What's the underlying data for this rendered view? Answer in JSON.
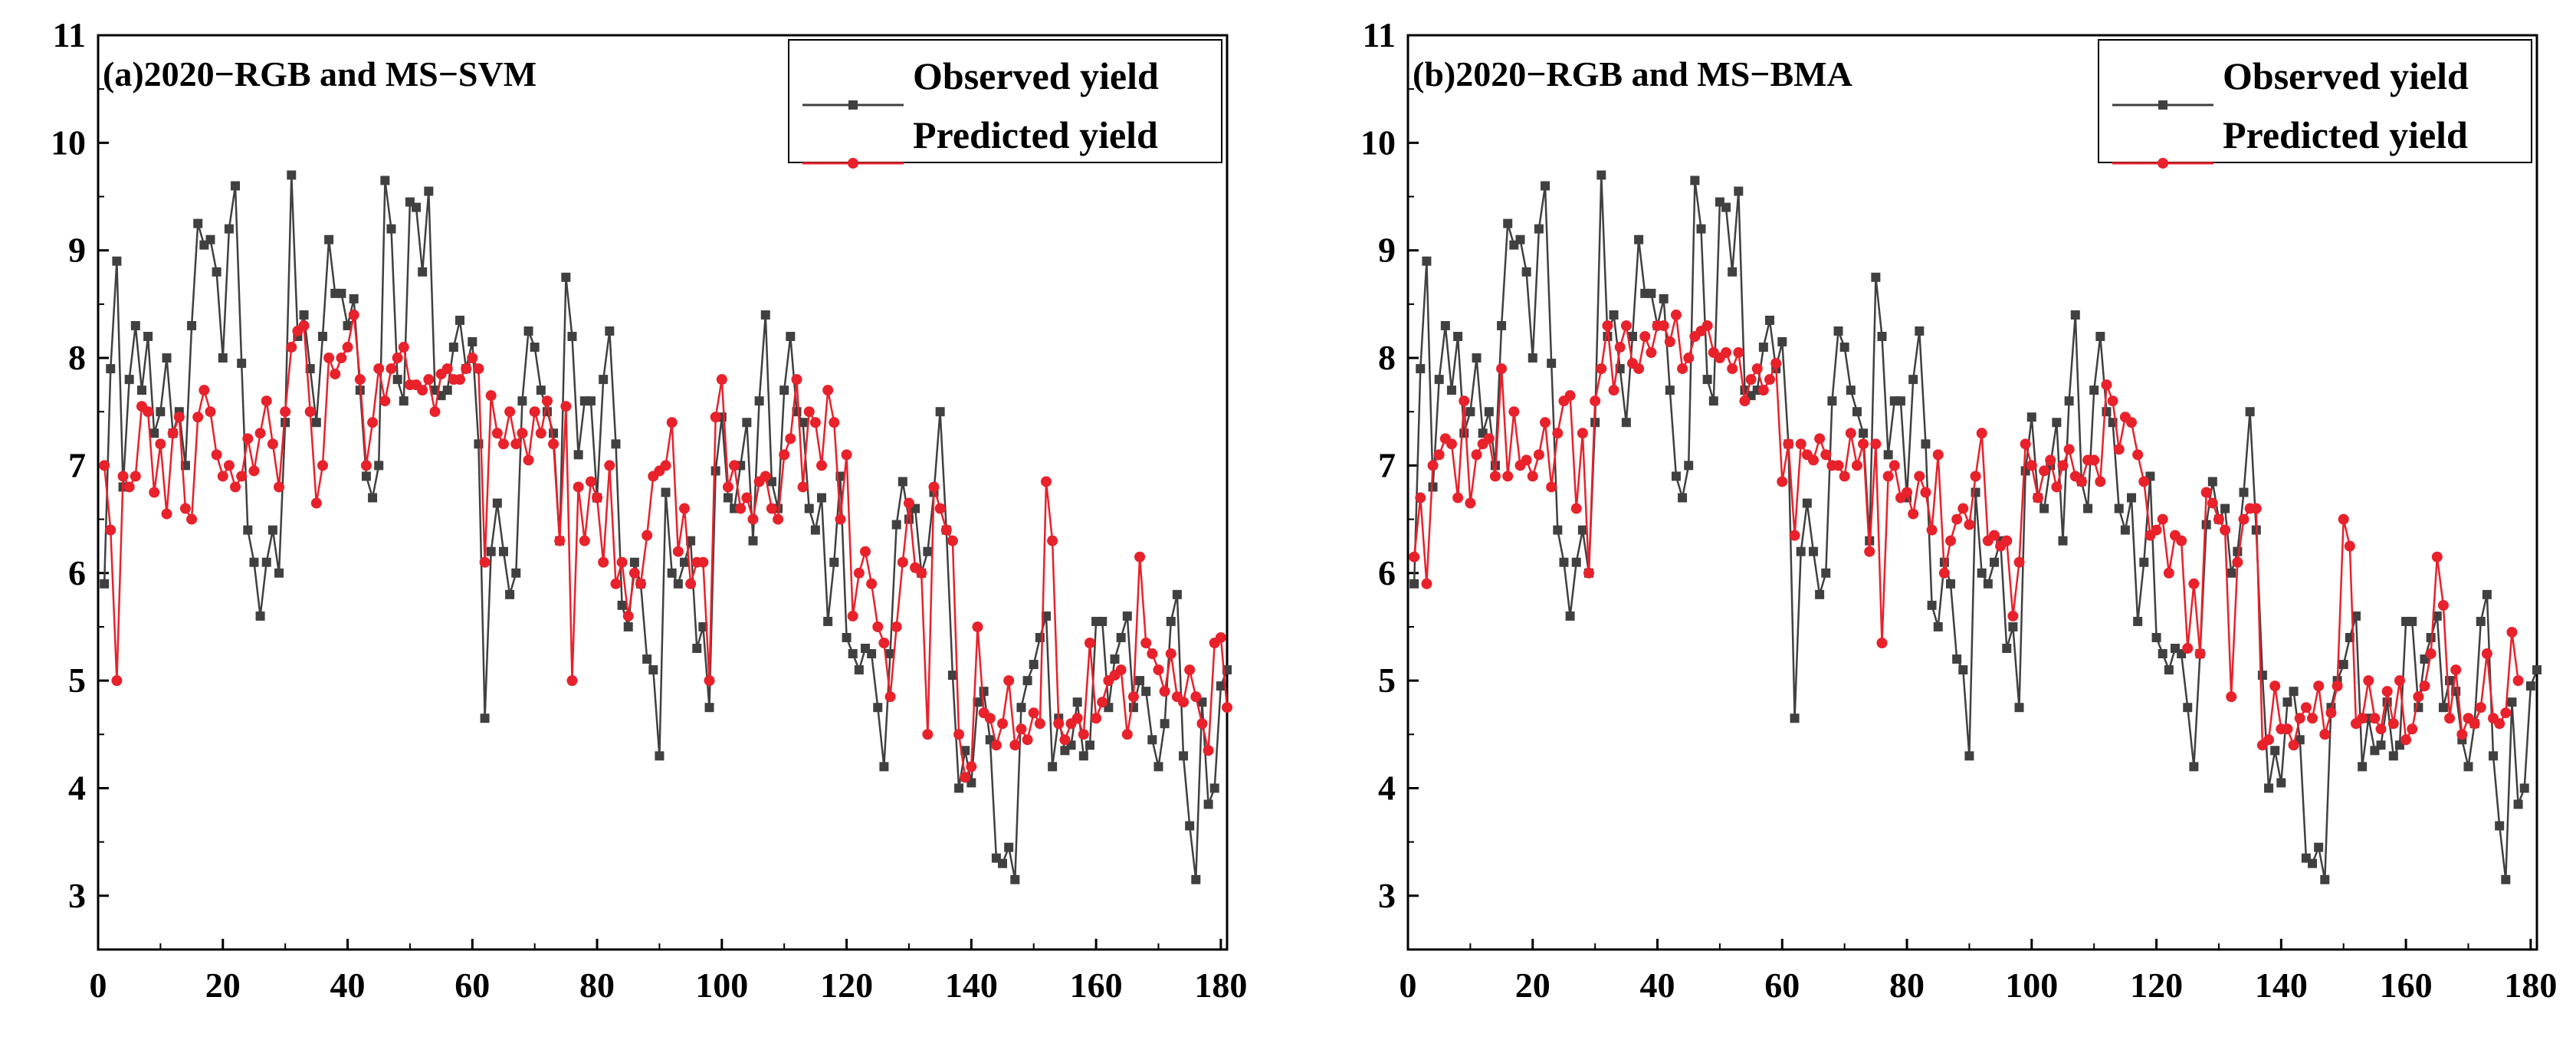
{
  "figure": {
    "legend_position": "top-right",
    "colors": {
      "observed": "#404040",
      "predicted": "#e8212b",
      "axis": "#000000"
    }
  },
  "chart_data": [
    {
      "type": "line",
      "title": "(a)2020−RGB and MS−SVM",
      "xlabel": "",
      "ylabel": "",
      "xlim": [
        0,
        181
      ],
      "ylim": [
        2.5,
        11
      ],
      "x_ticks": [
        0,
        20,
        40,
        60,
        80,
        100,
        120,
        140,
        160,
        180
      ],
      "y_ticks": [
        3,
        4,
        5,
        6,
        7,
        8,
        9,
        10,
        11
      ],
      "grid": false,
      "legend": [
        "Observed yield",
        "Predicted yield"
      ],
      "x_start": 1,
      "series": [
        {
          "name": "Observed yield",
          "marker": "square",
          "color": "#404040",
          "values": [
            5.9,
            7.9,
            8.9,
            6.8,
            7.8,
            8.3,
            7.7,
            8.2,
            7.3,
            7.5,
            8.0,
            7.3,
            7.5,
            7.0,
            8.3,
            9.25,
            9.05,
            9.1,
            8.8,
            8.0,
            9.2,
            9.6,
            7.95,
            6.4,
            6.1,
            5.6,
            6.1,
            6.4,
            6.0,
            7.4,
            9.7,
            8.2,
            8.4,
            7.9,
            7.4,
            8.2,
            9.1,
            8.6,
            8.6,
            8.3,
            8.55,
            7.7,
            6.9,
            6.7,
            7.0,
            9.65,
            9.2,
            7.8,
            7.6,
            9.45,
            9.4,
            8.8,
            9.55,
            7.7,
            7.65,
            7.7,
            8.1,
            8.35,
            7.9,
            8.15,
            7.2,
            4.65,
            6.2,
            6.65,
            6.2,
            5.8,
            6.0,
            7.6,
            8.25,
            8.1,
            7.7,
            7.5,
            7.3,
            6.3,
            8.75,
            8.2,
            7.1,
            7.6,
            7.6,
            6.7,
            7.8,
            8.25,
            7.2,
            5.7,
            5.5,
            6.1,
            5.9,
            5.2,
            5.1,
            4.3,
            6.75,
            6.0,
            5.9,
            6.1,
            6.3,
            5.3,
            5.5,
            4.75,
            6.95,
            7.45,
            6.7,
            6.6,
            7.0,
            7.4,
            6.3,
            7.6,
            8.4,
            6.85,
            6.6,
            7.7,
            8.2,
            7.5,
            7.4,
            6.6,
            6.4,
            6.7,
            5.55,
            6.1,
            6.9,
            5.4,
            5.25,
            5.1,
            5.3,
            5.25,
            4.75,
            4.2,
            5.25,
            6.45,
            6.85,
            6.5,
            6.6,
            6.0,
            6.2,
            6.75,
            7.5,
            6.4,
            5.05,
            4.0,
            4.35,
            4.05,
            4.8,
            4.9,
            4.45,
            3.35,
            3.3,
            3.45,
            3.15,
            4.75,
            5.0,
            5.15,
            5.4,
            5.6,
            4.2,
            4.65,
            4.35,
            4.4,
            4.8,
            4.3,
            4.4,
            5.55,
            5.55,
            4.75,
            5.2,
            5.4,
            5.6,
            4.75,
            5.0,
            4.9,
            4.45,
            4.2,
            4.6,
            5.55,
            5.8,
            4.3,
            3.65,
            3.15,
            4.8,
            3.85,
            4.0,
            4.95,
            5.1
          ]
        },
        {
          "name": "Predicted yield",
          "marker": "circle",
          "color": "#e8212b",
          "values": [
            7.0,
            6.4,
            5.0,
            6.9,
            6.8,
            6.9,
            7.55,
            7.5,
            6.75,
            7.2,
            6.55,
            7.3,
            7.45,
            6.6,
            6.5,
            7.45,
            7.7,
            7.5,
            7.1,
            6.9,
            7.0,
            6.8,
            6.9,
            7.25,
            6.95,
            7.3,
            7.6,
            7.2,
            6.8,
            7.5,
            8.1,
            8.25,
            8.3,
            7.5,
            6.65,
            7.0,
            8.0,
            7.85,
            8.0,
            8.1,
            8.4,
            7.8,
            7.0,
            7.4,
            7.9,
            7.6,
            7.9,
            8.0,
            8.1,
            7.75,
            7.75,
            7.7,
            7.8,
            7.5,
            7.85,
            7.9,
            7.8,
            7.8,
            7.9,
            8.0,
            7.9,
            6.1,
            7.65,
            7.3,
            7.2,
            7.5,
            7.2,
            7.3,
            7.05,
            7.5,
            7.3,
            7.6,
            7.2,
            6.3,
            7.55,
            5.0,
            6.8,
            6.3,
            6.85,
            6.7,
            6.1,
            7.0,
            5.9,
            6.1,
            5.6,
            6.0,
            5.9,
            6.35,
            6.9,
            6.95,
            7.0,
            7.4,
            6.2,
            6.6,
            5.9,
            6.1,
            6.1,
            5.0,
            7.45,
            7.8,
            6.8,
            7.0,
            6.6,
            6.7,
            6.5,
            6.85,
            6.9,
            6.6,
            6.5,
            7.1,
            7.25,
            7.8,
            6.8,
            7.5,
            7.4,
            7.0,
            7.7,
            7.4,
            6.5,
            7.1,
            5.6,
            6.0,
            6.2,
            5.9,
            5.5,
            5.35,
            4.85,
            5.5,
            6.1,
            6.65,
            6.05,
            6.0,
            4.5,
            6.8,
            6.6,
            6.4,
            6.3,
            4.5,
            4.1,
            4.2,
            5.5,
            4.7,
            4.65,
            4.4,
            4.6,
            5.0,
            4.4,
            4.55,
            4.45,
            4.7,
            4.6,
            6.85,
            6.3,
            4.6,
            4.45,
            4.6,
            4.65,
            4.5,
            5.35,
            4.65,
            4.8,
            5.0,
            5.05,
            5.1,
            4.5,
            4.85,
            6.15,
            5.35,
            5.25,
            5.1,
            4.9,
            5.25,
            4.85,
            4.8,
            5.1,
            4.85,
            4.6,
            4.35,
            5.35,
            5.4,
            4.75
          ]
        }
      ]
    },
    {
      "type": "line",
      "title": "(b)2020−RGB and MS−BMA",
      "xlabel": "",
      "ylabel": "",
      "xlim": [
        0,
        181
      ],
      "ylim": [
        2.5,
        11
      ],
      "x_ticks": [
        0,
        20,
        40,
        60,
        80,
        100,
        120,
        140,
        160,
        180
      ],
      "y_ticks": [
        3,
        4,
        5,
        6,
        7,
        8,
        9,
        10,
        11
      ],
      "grid": false,
      "legend": [
        "Observed yield",
        "Predicted yield"
      ],
      "x_start": 1,
      "series": [
        {
          "name": "Observed yield",
          "marker": "square",
          "color": "#404040",
          "values": [
            5.9,
            7.9,
            8.9,
            6.8,
            7.8,
            8.3,
            7.7,
            8.2,
            7.3,
            7.5,
            8.0,
            7.3,
            7.5,
            7.0,
            8.3,
            9.25,
            9.05,
            9.1,
            8.8,
            8.0,
            9.2,
            9.6,
            7.95,
            6.4,
            6.1,
            5.6,
            6.1,
            6.4,
            6.0,
            7.4,
            9.7,
            8.2,
            8.4,
            7.9,
            7.4,
            8.2,
            9.1,
            8.6,
            8.6,
            8.3,
            8.55,
            7.7,
            6.9,
            6.7,
            7.0,
            9.65,
            9.2,
            7.8,
            7.6,
            9.45,
            9.4,
            8.8,
            9.55,
            7.7,
            7.65,
            7.7,
            8.1,
            8.35,
            7.9,
            8.15,
            7.2,
            4.65,
            6.2,
            6.65,
            6.2,
            5.8,
            6.0,
            7.6,
            8.25,
            8.1,
            7.7,
            7.5,
            7.3,
            6.3,
            8.75,
            8.2,
            7.1,
            7.6,
            7.6,
            6.7,
            7.8,
            8.25,
            7.2,
            5.7,
            5.5,
            6.1,
            5.9,
            5.2,
            5.1,
            4.3,
            6.75,
            6.0,
            5.9,
            6.1,
            6.3,
            5.3,
            5.5,
            4.75,
            6.95,
            7.45,
            6.7,
            6.6,
            7.0,
            7.4,
            6.3,
            7.6,
            8.4,
            6.85,
            6.6,
            7.7,
            8.2,
            7.5,
            7.4,
            6.6,
            6.4,
            6.7,
            5.55,
            6.1,
            6.9,
            5.4,
            5.25,
            5.1,
            5.3,
            5.25,
            4.75,
            4.2,
            5.25,
            6.45,
            6.85,
            6.5,
            6.6,
            6.0,
            6.2,
            6.75,
            7.5,
            6.4,
            5.05,
            4.0,
            4.35,
            4.05,
            4.8,
            4.9,
            4.45,
            3.35,
            3.3,
            3.45,
            3.15,
            4.75,
            5.0,
            5.15,
            5.4,
            5.6,
            4.2,
            4.65,
            4.35,
            4.4,
            4.8,
            4.3,
            4.4,
            5.55,
            5.55,
            4.75,
            5.2,
            5.4,
            5.6,
            4.75,
            5.0,
            4.9,
            4.45,
            4.2,
            4.6,
            5.55,
            5.8,
            4.3,
            3.65,
            3.15,
            4.8,
            3.85,
            4.0,
            4.95,
            5.1
          ]
        },
        {
          "name": "Predicted yield",
          "marker": "circle",
          "color": "#e8212b",
          "values": [
            6.15,
            6.7,
            5.9,
            7.0,
            7.1,
            7.25,
            7.2,
            6.7,
            7.6,
            6.65,
            7.1,
            7.2,
            7.25,
            6.9,
            7.9,
            6.9,
            7.5,
            7.0,
            7.05,
            6.9,
            7.1,
            7.4,
            6.8,
            7.3,
            7.6,
            7.65,
            6.6,
            7.3,
            6.0,
            7.6,
            7.9,
            8.3,
            7.7,
            8.1,
            8.3,
            7.95,
            7.9,
            8.2,
            8.05,
            8.3,
            8.3,
            8.15,
            8.4,
            7.9,
            8.0,
            8.2,
            8.25,
            8.3,
            8.05,
            8.0,
            8.05,
            7.9,
            8.05,
            7.6,
            7.8,
            7.9,
            7.7,
            7.8,
            7.95,
            6.85,
            7.2,
            6.35,
            7.2,
            7.1,
            7.05,
            7.25,
            7.1,
            7.0,
            7.0,
            6.9,
            7.3,
            7.0,
            7.2,
            6.2,
            7.2,
            5.35,
            6.9,
            7.0,
            6.7,
            6.75,
            6.55,
            6.9,
            6.75,
            6.4,
            7.1,
            6.0,
            6.3,
            6.5,
            6.6,
            6.45,
            6.9,
            7.3,
            6.3,
            6.35,
            6.25,
            6.3,
            5.6,
            6.1,
            7.2,
            7.0,
            6.7,
            6.95,
            7.05,
            6.8,
            7.0,
            7.15,
            6.9,
            6.85,
            7.05,
            7.05,
            6.85,
            7.75,
            7.6,
            7.15,
            7.45,
            7.4,
            7.1,
            6.85,
            6.35,
            6.4,
            6.5,
            6.0,
            6.35,
            6.3,
            5.3,
            5.9,
            5.25,
            6.75,
            6.65,
            6.5,
            6.4,
            4.85,
            6.1,
            6.5,
            6.6,
            6.6,
            4.4,
            4.45,
            4.95,
            4.55,
            4.55,
            4.4,
            4.65,
            4.75,
            4.65,
            4.95,
            4.5,
            4.7,
            4.95,
            6.5,
            6.25,
            4.6,
            4.65,
            5.0,
            4.65,
            4.55,
            4.9,
            4.6,
            5.0,
            4.45,
            4.55,
            4.85,
            4.95,
            5.25,
            6.15,
            5.7,
            4.65,
            5.1,
            4.5,
            4.65,
            4.6,
            4.75,
            5.25,
            4.65,
            4.6,
            4.7,
            5.45,
            5.0
          ]
        }
      ]
    }
  ]
}
